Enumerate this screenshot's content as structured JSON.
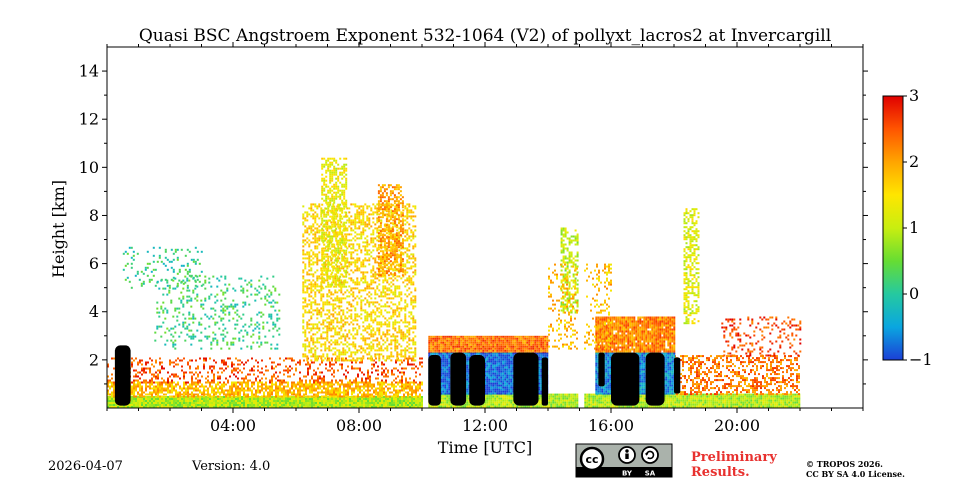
{
  "chart_data": {
    "type": "heatmap",
    "title": "Quasi BSC Angstroem Exponent 532-1064 (V2) of pollyxt_lacros2 at Invercargill",
    "xlabel": "Time [UTC]",
    "ylabel": "Height [km]",
    "xlim_hours": [
      0,
      24
    ],
    "ylim_km": [
      0,
      15
    ],
    "x_ticks": [
      {
        "hour": 4,
        "label": "04:00"
      },
      {
        "hour": 8,
        "label": "08:00"
      },
      {
        "hour": 12,
        "label": "12:00"
      },
      {
        "hour": 16,
        "label": "16:00"
      },
      {
        "hour": 20,
        "label": "20:00"
      }
    ],
    "y_ticks": [
      {
        "km": 2,
        "label": "2"
      },
      {
        "km": 4,
        "label": "4"
      },
      {
        "km": 6,
        "label": "6"
      },
      {
        "km": 8,
        "label": "8"
      },
      {
        "km": 10,
        "label": "10"
      },
      {
        "km": 12,
        "label": "12"
      },
      {
        "km": 14,
        "label": "14"
      }
    ],
    "colorbar": {
      "range": [
        -1,
        3
      ],
      "ticks": [
        {
          "value": 3,
          "label": "3"
        },
        {
          "value": 2,
          "label": "2"
        },
        {
          "value": 1,
          "label": "1"
        },
        {
          "value": 0,
          "label": "0"
        },
        {
          "value": -1,
          "label": "−1"
        }
      ],
      "stops": [
        "#1b3fd6",
        "#0aa6e0",
        "#25c9a0",
        "#66dd33",
        "#c8ee10",
        "#ffe600",
        "#ffa500",
        "#ff5500",
        "#e00000"
      ]
    },
    "regions": [
      {
        "name": "boundary-layer-1",
        "t": [
          0.0,
          10.0
        ],
        "h": [
          0.0,
          0.5
        ],
        "value": 0.9,
        "density": 1.0
      },
      {
        "name": "boundary-layer-2",
        "t": [
          0.0,
          10.0
        ],
        "h": [
          0.5,
          1.1
        ],
        "value": 1.8,
        "density": 0.7
      },
      {
        "name": "boundary-layer-3",
        "t": [
          0.0,
          10.0
        ],
        "h": [
          1.1,
          2.1
        ],
        "value": 2.5,
        "density": 0.3
      },
      {
        "name": "night-layer-1",
        "t": [
          10.2,
          22.0
        ],
        "h": [
          0.0,
          0.6
        ],
        "value": 0.9,
        "density": 1.0
      },
      {
        "name": "night-layer-2",
        "t": [
          18.0,
          22.0
        ],
        "h": [
          0.6,
          2.2
        ],
        "value": 2.3,
        "density": 0.45
      },
      {
        "name": "night-layer-3",
        "t": [
          19.5,
          22.0
        ],
        "h": [
          2.2,
          3.8
        ],
        "value": 2.6,
        "density": 0.2
      },
      {
        "name": "aerosol-plume-low",
        "t": [
          1.5,
          5.5
        ],
        "h": [
          2.5,
          5.5
        ],
        "value": 0.2,
        "density": 0.18
      },
      {
        "name": "aerosol-plume-high",
        "t": [
          0.5,
          3.0
        ],
        "h": [
          5.0,
          6.7
        ],
        "value": 0.1,
        "density": 0.15
      },
      {
        "name": "cloud-top-edge-a",
        "t": [
          10.2,
          14.0
        ],
        "h": [
          2.3,
          3.0
        ],
        "value": 2.3,
        "density": 1.0
      },
      {
        "name": "cloud-top-edge-b",
        "t": [
          15.5,
          18.0
        ],
        "h": [
          2.3,
          3.8
        ],
        "value": 2.2,
        "density": 0.95
      },
      {
        "name": "cloud-body-a",
        "t": [
          10.2,
          14.0
        ],
        "h": [
          0.6,
          2.3
        ],
        "value": -0.8,
        "density": 1.0
      },
      {
        "name": "cloud-body-b",
        "t": [
          15.5,
          18.0
        ],
        "h": [
          0.6,
          2.3
        ],
        "value": -0.6,
        "density": 1.0
      },
      {
        "name": "convection-0730",
        "t": [
          6.2,
          9.8
        ],
        "h": [
          2.0,
          8.5
        ],
        "value": 1.6,
        "density": 0.45
      },
      {
        "name": "tower-0700",
        "t": [
          6.8,
          7.6
        ],
        "h": [
          5.0,
          10.4
        ],
        "value": 1.3,
        "density": 0.55
      },
      {
        "name": "tower-0830",
        "t": [
          8.6,
          9.4
        ],
        "h": [
          5.5,
          9.3
        ],
        "value": 2.0,
        "density": 0.55
      },
      {
        "name": "tower-1440",
        "t": [
          14.4,
          15.0
        ],
        "h": [
          4.0,
          7.5
        ],
        "value": 1.0,
        "density": 0.5
      },
      {
        "name": "tower-1830",
        "t": [
          18.3,
          18.8
        ],
        "h": [
          3.5,
          8.3
        ],
        "value": 1.2,
        "density": 0.5
      },
      {
        "name": "scatter-1500",
        "t": [
          14.0,
          16.0
        ],
        "h": [
          2.5,
          6.0
        ],
        "value": 1.8,
        "density": 0.2
      }
    ],
    "masked_blocks": [
      {
        "t": [
          0.25,
          0.75
        ],
        "h": [
          0.1,
          2.6
        ]
      },
      {
        "t": [
          10.2,
          10.6
        ],
        "h": [
          0.1,
          2.2
        ]
      },
      {
        "t": [
          10.9,
          11.4
        ],
        "h": [
          0.1,
          2.3
        ]
      },
      {
        "t": [
          11.5,
          12.0
        ],
        "h": [
          0.1,
          2.2
        ]
      },
      {
        "t": [
          12.9,
          13.7
        ],
        "h": [
          0.1,
          2.3
        ]
      },
      {
        "t": [
          13.8,
          14.0
        ],
        "h": [
          0.1,
          2.1
        ]
      },
      {
        "t": [
          15.6,
          15.8
        ],
        "h": [
          0.9,
          2.3
        ]
      },
      {
        "t": [
          16.0,
          16.9
        ],
        "h": [
          0.1,
          2.3
        ]
      },
      {
        "t": [
          17.1,
          17.7
        ],
        "h": [
          0.1,
          2.3
        ]
      },
      {
        "t": [
          18.0,
          18.2
        ],
        "h": [
          0.6,
          2.1
        ]
      }
    ],
    "data_gaps_hours": [
      [
        10.0,
        10.2
      ],
      [
        14.95,
        15.1
      ],
      [
        22.0,
        24.0
      ]
    ]
  },
  "footer": {
    "date": "2026-04-07",
    "version": "Version: 4.0",
    "preliminary_line1": "Preliminary",
    "preliminary_line2": "Results.",
    "copyright_line1": "© TROPOS 2026.",
    "copyright_line2": "CC BY SA 4.0 License.",
    "license_badge": {
      "cc": "cc",
      "by": "BY",
      "sa": "SA"
    }
  }
}
